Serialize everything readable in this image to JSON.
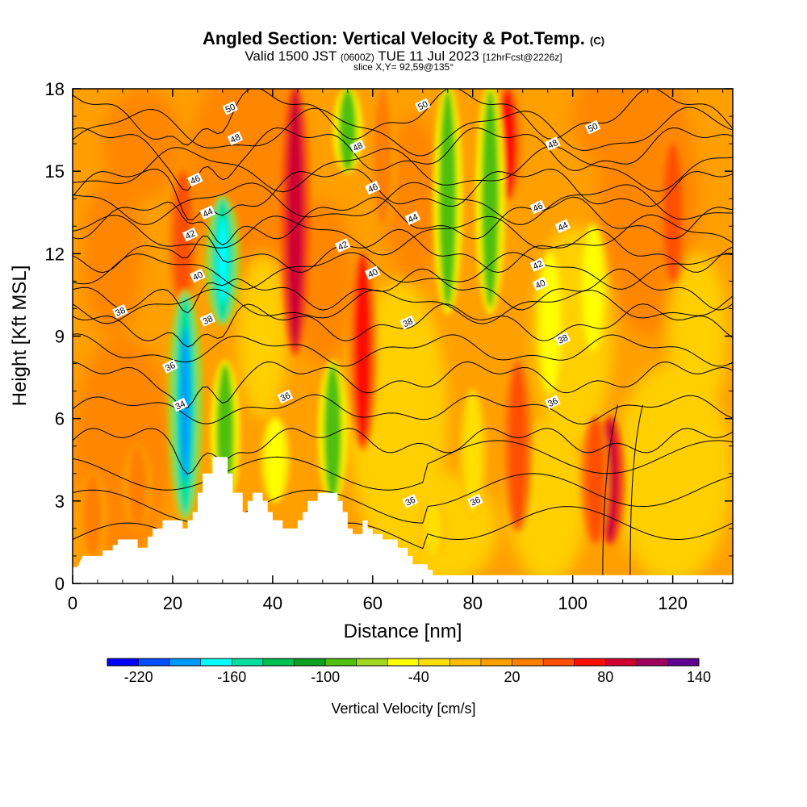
{
  "chart_data": {
    "type": "heatmap",
    "title": "Angled Section: Vertical Velocity & Pot.Temp.",
    "title_unit": "(C)",
    "subtitle_valid": "Valid 1500 JST",
    "subtitle_utc": "(0600Z)",
    "subtitle_date": "TUE 11 Jul 2023",
    "subtitle_fcst": "[12hrFcst@2226z]",
    "slice": "slice X,Y= 92,59@135°",
    "xlabel": "Distance [nm]",
    "ylabel": "Height [Kft MSL]",
    "xlim": [
      0,
      132
    ],
    "ylim": [
      0,
      18
    ],
    "xticks": [
      "0",
      "20",
      "40",
      "60",
      "80",
      "100",
      "120"
    ],
    "yticks": [
      "0",
      "3",
      "6",
      "9",
      "12",
      "15",
      "18"
    ],
    "colorbar_label": "Vertical Velocity [cm/s]",
    "colorbar_ticks": [
      "-220",
      "-160",
      "-100",
      "-40",
      "20",
      "80",
      "140"
    ],
    "colorbar_colors": [
      "#0000ff",
      "#0050ff",
      "#009bff",
      "#00ffff",
      "#00dfa0",
      "#00c050",
      "#10a020",
      "#50bf10",
      "#a0d820",
      "#ffff00",
      "#ffdf00",
      "#ffbf00",
      "#ff9f00",
      "#ff7f00",
      "#ff4f00",
      "#ff1000",
      "#d00030",
      "#a00060",
      "#600090"
    ],
    "updrafts": [
      {
        "x": 22,
        "top": 15,
        "bottom": 10,
        "value": 50
      },
      {
        "x": 44.5,
        "top": 18,
        "bottom": 8.5,
        "value": 80
      },
      {
        "x": 58,
        "top": 12,
        "bottom": 5,
        "value": 60
      },
      {
        "x": 62,
        "top": 18,
        "bottom": 13,
        "value": 30
      },
      {
        "x": 87,
        "top": 18,
        "bottom": 14,
        "value": 60
      },
      {
        "x": 89,
        "top": 8,
        "bottom": 2,
        "value": 40
      },
      {
        "x": 107.5,
        "top": 6,
        "bottom": 1.5,
        "value": 80
      },
      {
        "x": 104.5,
        "top": 6,
        "bottom": 1.5,
        "value": 40
      },
      {
        "x": 120,
        "top": 16,
        "bottom": 11,
        "value": 40
      },
      {
        "x": 13,
        "top": 5,
        "bottom": 2,
        "value": 30
      },
      {
        "x": 4,
        "top": 4,
        "bottom": 1,
        "value": 20
      }
    ],
    "downdrafts": [
      {
        "x": 22.5,
        "top": 10.5,
        "bottom": 2.5,
        "value": -160
      },
      {
        "x": 30,
        "top": 14,
        "bottom": 9.5,
        "value": -150
      },
      {
        "x": 30.5,
        "top": 8,
        "bottom": 3,
        "value": -100
      },
      {
        "x": 40.5,
        "top": 6,
        "bottom": 3,
        "value": -60
      },
      {
        "x": 52,
        "top": 8,
        "bottom": 3,
        "value": -90
      },
      {
        "x": 55,
        "top": 18,
        "bottom": 15,
        "value": -90
      },
      {
        "x": 75,
        "top": 18,
        "bottom": 10,
        "value": -100
      },
      {
        "x": 83.5,
        "top": 18,
        "bottom": 10,
        "value": -100
      },
      {
        "x": 95.5,
        "top": 12,
        "bottom": 7,
        "value": -60
      },
      {
        "x": 104,
        "top": 13,
        "bottom": 8.5,
        "value": -60
      },
      {
        "x": 80,
        "top": 7,
        "bottom": 2.5,
        "value": -40
      },
      {
        "x": 72,
        "top": 3,
        "bottom": 1,
        "value": -40
      }
    ],
    "contour_labels": [
      {
        "text": "50",
        "x": 31.5,
        "y": 17.3
      },
      {
        "text": "50",
        "x": 70,
        "y": 17.4
      },
      {
        "text": "50",
        "x": 104,
        "y": 16.6
      },
      {
        "text": "48",
        "x": 32.5,
        "y": 16.2
      },
      {
        "text": "48",
        "x": 57,
        "y": 15.9
      },
      {
        "text": "48",
        "x": 96,
        "y": 16
      },
      {
        "text": "46",
        "x": 24.5,
        "y": 14.7
      },
      {
        "text": "46",
        "x": 60,
        "y": 14.4
      },
      {
        "text": "46",
        "x": 93,
        "y": 13.7
      },
      {
        "text": "44",
        "x": 27,
        "y": 13.5
      },
      {
        "text": "44",
        "x": 68,
        "y": 13.3
      },
      {
        "text": "44",
        "x": 98,
        "y": 13
      },
      {
        "text": "42",
        "x": 23.5,
        "y": 12.7
      },
      {
        "text": "42",
        "x": 54,
        "y": 12.3
      },
      {
        "text": "42",
        "x": 93,
        "y": 11.6
      },
      {
        "text": "40",
        "x": 25,
        "y": 11.2
      },
      {
        "text": "40",
        "x": 60,
        "y": 11.3
      },
      {
        "text": "40",
        "x": 93.5,
        "y": 10.9
      },
      {
        "text": "38",
        "x": 9.5,
        "y": 9.9
      },
      {
        "text": "38",
        "x": 27,
        "y": 9.6
      },
      {
        "text": "38",
        "x": 67,
        "y": 9.5
      },
      {
        "text": "38",
        "x": 98,
        "y": 8.9
      },
      {
        "text": "36",
        "x": 19.5,
        "y": 7.9
      },
      {
        "text": "36",
        "x": 42.5,
        "y": 6.8
      },
      {
        "text": "36",
        "x": 96,
        "y": 6.6
      },
      {
        "text": "36",
        "x": 67.5,
        "y": 3
      },
      {
        "text": "36",
        "x": 80.5,
        "y": 3
      },
      {
        "text": "34",
        "x": 21.5,
        "y": 6.5
      }
    ],
    "theta_levels": [
      {
        "value": 34,
        "base": 5.2
      },
      {
        "value": 36,
        "base": 7.5
      },
      {
        "value": 38,
        "base": 9.5
      },
      {
        "value": 40,
        "base": 10.7
      },
      {
        "value": 42,
        "base": 12.1
      },
      {
        "value": 44,
        "base": 13.3
      },
      {
        "value": 46,
        "base": 14.4
      },
      {
        "value": 48,
        "base": 15.8
      },
      {
        "value": 50,
        "base": 17.1
      }
    ],
    "terrain": [
      [
        0,
        0.6
      ],
      [
        1,
        0.6
      ],
      [
        2,
        1.0
      ],
      [
        6,
        1.0
      ],
      [
        6,
        1.2
      ],
      [
        8,
        1.2
      ],
      [
        8,
        1.4
      ],
      [
        9,
        1.4
      ],
      [
        9,
        1.6
      ],
      [
        13,
        1.6
      ],
      [
        13,
        1.3
      ],
      [
        15,
        1.3
      ],
      [
        15,
        1.7
      ],
      [
        16,
        1.7
      ],
      [
        16,
        2.0
      ],
      [
        18,
        2.0
      ],
      [
        18,
        2.3
      ],
      [
        22,
        2.3
      ],
      [
        22,
        2.0
      ],
      [
        23,
        2.0
      ],
      [
        23,
        2.3
      ],
      [
        24,
        2.3
      ],
      [
        24,
        2.6
      ],
      [
        25,
        2.6
      ],
      [
        25,
        3.3
      ],
      [
        26,
        3.3
      ],
      [
        26,
        4.0
      ],
      [
        28,
        4.0
      ],
      [
        28,
        4.6
      ],
      [
        31,
        4.6
      ],
      [
        31,
        4.0
      ],
      [
        32,
        4.0
      ],
      [
        32,
        3.3
      ],
      [
        34,
        3.3
      ],
      [
        34,
        2.6
      ],
      [
        35,
        2.6
      ],
      [
        35,
        3.0
      ],
      [
        36,
        3.0
      ],
      [
        36,
        3.3
      ],
      [
        38,
        3.3
      ],
      [
        38,
        3.0
      ],
      [
        39,
        3.0
      ],
      [
        39,
        2.6
      ],
      [
        40,
        2.6
      ],
      [
        40,
        2.3
      ],
      [
        42,
        2.3
      ],
      [
        42,
        2.0
      ],
      [
        45,
        2.0
      ],
      [
        45,
        2.3
      ],
      [
        46,
        2.3
      ],
      [
        46,
        2.6
      ],
      [
        47,
        2.6
      ],
      [
        47,
        3.0
      ],
      [
        49,
        3.0
      ],
      [
        49,
        3.3
      ],
      [
        53,
        3.3
      ],
      [
        53,
        3.0
      ],
      [
        54,
        3.0
      ],
      [
        54,
        2.6
      ],
      [
        55,
        2.6
      ],
      [
        55,
        2.0
      ],
      [
        56,
        2.0
      ],
      [
        56,
        1.8
      ],
      [
        58,
        1.8
      ],
      [
        58,
        2.3
      ],
      [
        59,
        2.3
      ],
      [
        59,
        2.0
      ],
      [
        60,
        2.0
      ],
      [
        60,
        1.8
      ],
      [
        62,
        1.8
      ],
      [
        62,
        1.6
      ],
      [
        65,
        1.6
      ],
      [
        65,
        1.3
      ],
      [
        67,
        1.3
      ],
      [
        67,
        1.0
      ],
      [
        68,
        1.0
      ],
      [
        68,
        0.7
      ],
      [
        71,
        0.7
      ],
      [
        71,
        0.5
      ],
      [
        72,
        0.5
      ],
      [
        72,
        0.3
      ],
      [
        132,
        0.3
      ]
    ]
  }
}
